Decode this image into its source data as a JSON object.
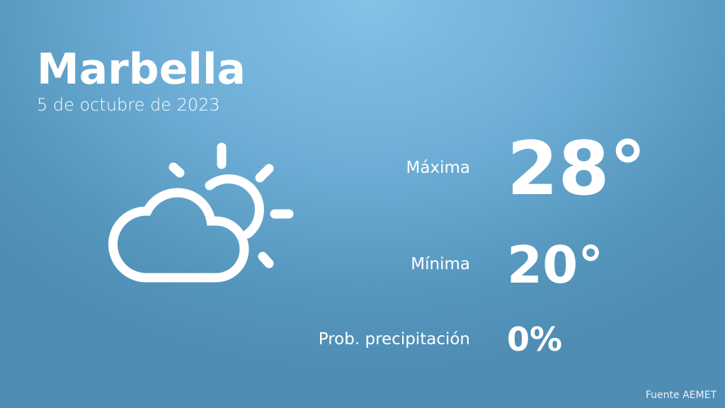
{
  "location": {
    "city": "Marbella",
    "date": "5 de octubre de 2023"
  },
  "weather_icon": "partly-cloudy-icon",
  "forecast": {
    "max_label": "Máxima",
    "max_value": "28°",
    "min_label": "Mínima",
    "min_value": "20°",
    "precip_label": "Prob. precipitación",
    "precip_value": "0%"
  },
  "source": "Fuente AEMET",
  "colors": {
    "background_top": "#84c2e6",
    "background_bottom": "#4f8db4",
    "text": "#ffffff"
  }
}
